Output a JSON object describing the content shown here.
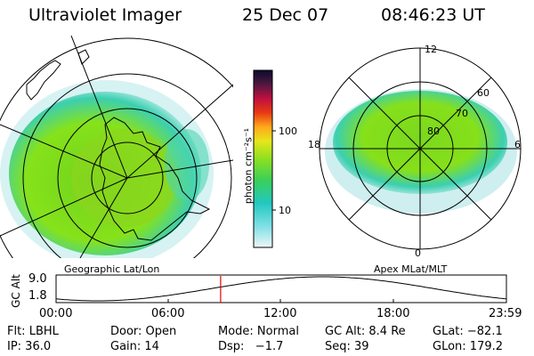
{
  "header": {
    "instrument": "Ultraviolet Imager",
    "date": "25 Dec 07",
    "time": "08:46:23 UT"
  },
  "panels": {
    "geographic": {
      "caption": "Geographic Lat/Lon"
    },
    "apex": {
      "caption": "Apex MLat/MLT",
      "mlt_labels": [
        "12",
        "18",
        "6",
        "0"
      ],
      "mlat_labels": [
        "60",
        "70",
        "80"
      ]
    }
  },
  "colorbar": {
    "label": "photon cm⁻²s⁻¹",
    "ticks": [
      "100",
      "10"
    ]
  },
  "altitude_plot": {
    "ylabel": "GC Alt",
    "yticks": [
      "9.0",
      "1.8"
    ],
    "xticks": [
      "00:00",
      "06:00",
      "12:00",
      "18:00",
      "23:59"
    ],
    "marker_time_hours": 8.77
  },
  "info": {
    "row1": [
      "Flt: LBHL",
      "Door: Open",
      "Mode: Normal",
      "GC Alt: 8.4 Re",
      "GLat: −82.1"
    ],
    "row2": [
      "IP: 36.0",
      "Gain: 14",
      "Dsp:   −1.7",
      "Seq: 39",
      "GLon: 179.2"
    ]
  },
  "colors": {
    "marker": "#e00000",
    "aurora_main": "#7fdc1f",
    "aurora_edge": "#20c8c0"
  }
}
